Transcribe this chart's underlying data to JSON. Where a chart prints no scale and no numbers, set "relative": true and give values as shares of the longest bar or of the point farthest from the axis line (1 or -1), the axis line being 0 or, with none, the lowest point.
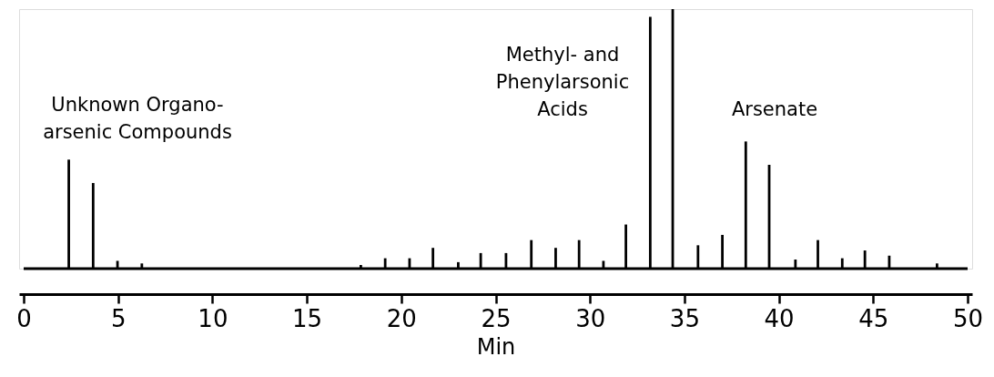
{
  "chart_data": {
    "type": "bar",
    "relative": true,
    "xlabel": "Min",
    "xlim": [
      0,
      50
    ],
    "xticks": [
      0,
      5,
      10,
      15,
      20,
      25,
      30,
      35,
      40,
      45,
      50
    ],
    "color": "#000000",
    "grid": false,
    "tick_labels": "x",
    "x": [
      2.39,
      3.68,
      4.97,
      6.26,
      17.86,
      19.15,
      20.44,
      21.68,
      23.02,
      24.21,
      25.55,
      26.89,
      28.18,
      29.42,
      30.71,
      31.9,
      33.19,
      34.38,
      35.72,
      37.01,
      38.25,
      39.49,
      40.88,
      42.07,
      43.36,
      44.56,
      45.85,
      48.38
    ],
    "values": [
      0.42,
      0.33,
      0.03,
      0.02,
      0.014,
      0.04,
      0.04,
      0.08,
      0.025,
      0.06,
      0.06,
      0.11,
      0.08,
      0.11,
      0.03,
      0.17,
      0.97,
      1,
      0.09,
      0.13,
      0.49,
      0.4,
      0.035,
      0.11,
      0.04,
      0.07,
      0.05,
      0.02
    ],
    "annotations": [
      "Unknown Organo-\narsenic Compounds",
      "Methyl- and\nPhenylarsonic\nAcids",
      "Arsenate"
    ]
  }
}
